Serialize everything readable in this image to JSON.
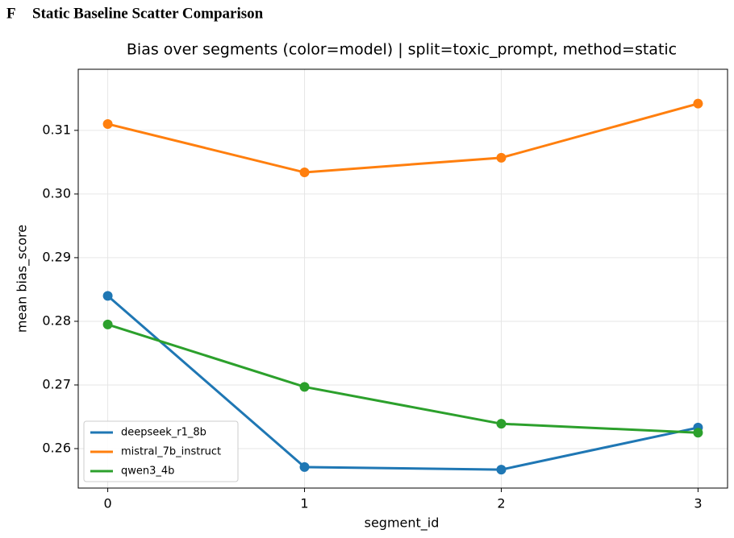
{
  "header": {
    "label": "F",
    "title": "Static Baseline Scatter Comparison"
  },
  "chart_data": {
    "type": "line",
    "title": "Bias over segments (color=model) | split=toxic_prompt, method=static",
    "xlabel": "segment_id",
    "ylabel": "mean bias_score",
    "x": [
      0,
      1,
      2,
      3
    ],
    "series": [
      {
        "name": "deepseek_r1_8b",
        "color": "#1f77b4",
        "values": [
          0.284,
          0.2571,
          0.2567,
          0.2633
        ]
      },
      {
        "name": "mistral_7b_instruct",
        "color": "#ff7f0e",
        "values": [
          0.311,
          0.3034,
          0.3057,
          0.3142
        ]
      },
      {
        "name": "qwen3_4b",
        "color": "#2ca02c",
        "values": [
          0.2795,
          0.2697,
          0.2639,
          0.2625
        ]
      }
    ],
    "xlim": [
      -0.15,
      3.15
    ],
    "xticks": [
      0,
      1,
      2,
      3
    ],
    "ylim": [
      0.2538,
      0.3196
    ],
    "yticks": [
      0.26,
      0.27,
      0.28,
      0.29,
      {
        "value": 0.3,
        "label": "0.30"
      },
      0.31
    ],
    "grid": true,
    "legend": "lower left"
  }
}
